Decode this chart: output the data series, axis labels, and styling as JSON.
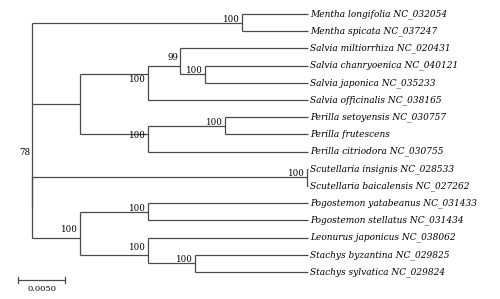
{
  "taxa": [
    "Mentha longifolia NC_032054",
    "Mentha spicata NC_037247",
    "Salvia miltiorrhiza NC_020431",
    "Salvia chanryoenica NC_040121",
    "Salvia japonica NC_035233",
    "Salvia officinalis NC_038165",
    "Perilla setoyensis NC_030757",
    "Perilla frutescens",
    "Perilla citriodora NC_030755",
    "Scutellaria insignis NC_028533",
    "Scutellaria baicalensis NC_027262",
    "Pogostemon yatabeanus NC_031433",
    "Pogostemon stellatus NC_031434",
    "Leonurus japonicus NC_038062",
    "Stachys byzantina NC_029825",
    "Stachys sylvatica NC_029824"
  ],
  "bootstrap": {
    "mentha": "100",
    "salvia_chanr_jap": "100",
    "salvia_milti_inner": "99",
    "salvia_outer": "100",
    "perilla_set_frut": "100",
    "perilla_outer": "100",
    "scutellaria": "100",
    "pogostemon": "100",
    "leon_stach_outer": "100",
    "stachys": "100",
    "lower_pogo_leon": "100",
    "root_78": "78"
  },
  "scale_bar_label": "0.0050",
  "background_color": "#ffffff",
  "line_color": "#4a4a4a",
  "text_color": "#000000",
  "font_size": 6.5,
  "bootstrap_font_size": 6.2
}
